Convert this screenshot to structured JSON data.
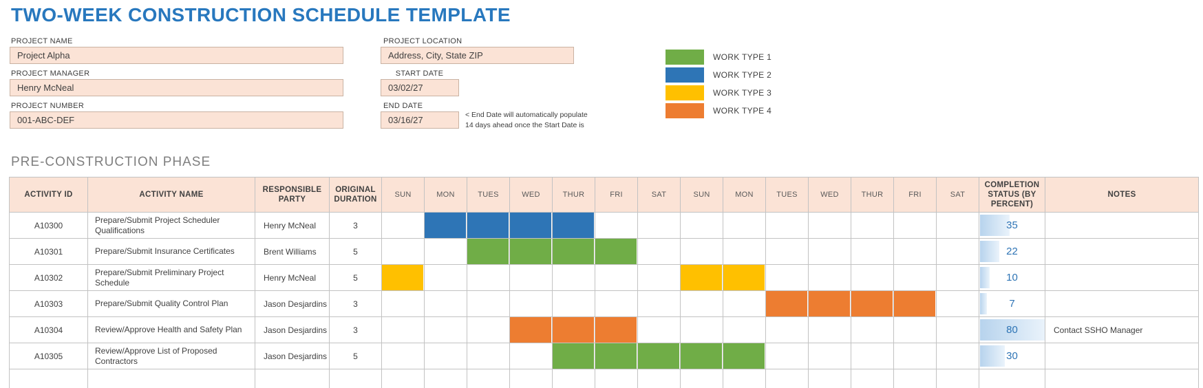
{
  "title": "TWO-WEEK CONSTRUCTION SCHEDULE TEMPLATE",
  "form": {
    "project_name": {
      "label": "PROJECT NAME",
      "value": "Project Alpha"
    },
    "project_manager": {
      "label": "PROJECT MANAGER",
      "value": "Henry McNeal"
    },
    "project_number": {
      "label": "PROJECT NUMBER",
      "value": "001-ABC-DEF"
    },
    "project_location": {
      "label": "PROJECT LOCATION",
      "value": "Address, City, State ZIP"
    },
    "start_date": {
      "label": "START DATE",
      "value": "03/02/27"
    },
    "end_date": {
      "label": "END DATE",
      "value": "03/16/27"
    },
    "end_date_note": {
      "line1": "< End Date will automatically populate",
      "line2": "14 days ahead once the Start Date is"
    }
  },
  "legend": {
    "items": [
      {
        "label": "WORK TYPE 1",
        "color": "#70AD47"
      },
      {
        "label": "WORK TYPE 2",
        "color": "#2E75B6"
      },
      {
        "label": "WORK TYPE 3",
        "color": "#FFC000"
      },
      {
        "label": "WORK TYPE 4",
        "color": "#ED7D31"
      }
    ]
  },
  "section_title": "PRE-CONSTRUCTION PHASE",
  "table": {
    "headers": {
      "activity_id": "ACTIVITY ID",
      "activity_name": "ACTIVITY NAME",
      "responsible_party": "RESPONSIBLE PARTY",
      "original_duration": "ORIGINAL DURATION",
      "completion_status": "COMPLETION STATUS (BY PERCENT)",
      "notes": "NOTES"
    },
    "day_headers": [
      "SUN",
      "MON",
      "TUES",
      "WED",
      "THUR",
      "FRI",
      "SAT",
      "SUN",
      "MON",
      "TUES",
      "WED",
      "THUR",
      "FRI",
      "SAT"
    ],
    "rows": [
      {
        "activity_id": "A10300",
        "activity_name": "Prepare/Submit Project Scheduler Qualifications",
        "responsible_party": "Henry McNeal",
        "original_duration": "3",
        "gantt": {
          "work_type": "WORK TYPE 2",
          "color": "#2E75B6",
          "day_indices": [
            1,
            2,
            3,
            4
          ]
        },
        "completion_percent": "35",
        "completion_bar_pct": 45,
        "notes": ""
      },
      {
        "activity_id": "A10301",
        "activity_name": "Prepare/Submit Insurance Certificates",
        "responsible_party": "Brent Williams",
        "original_duration": "5",
        "gantt": {
          "work_type": "WORK TYPE 1",
          "color": "#70AD47",
          "day_indices": [
            2,
            3,
            4,
            5
          ]
        },
        "completion_percent": "22",
        "completion_bar_pct": 29,
        "notes": ""
      },
      {
        "activity_id": "A10302",
        "activity_name": "Prepare/Submit Preliminary Project Schedule",
        "responsible_party": "Henry McNeal",
        "original_duration": "5",
        "gantt": {
          "work_type": "WORK TYPE 3",
          "color": "#FFC000",
          "day_indices": [
            0,
            7,
            8
          ]
        },
        "completion_percent": "10",
        "completion_bar_pct": 15,
        "notes": ""
      },
      {
        "activity_id": "A10303",
        "activity_name": "Prepare/Submit Quality Control Plan",
        "responsible_party": "Jason Desjardins",
        "original_duration": "3",
        "gantt": {
          "work_type": "WORK TYPE 4",
          "color": "#ED7D31",
          "day_indices": [
            9,
            10,
            11,
            12
          ]
        },
        "completion_percent": "7",
        "completion_bar_pct": 11,
        "notes": ""
      },
      {
        "activity_id": "A10304",
        "activity_name": "Review/Approve Health and Safety Plan",
        "responsible_party": "Jason Desjardins",
        "original_duration": "3",
        "gantt": {
          "work_type": "WORK TYPE 4",
          "color": "#ED7D31",
          "day_indices": [
            3,
            4,
            5
          ]
        },
        "completion_percent": "80",
        "completion_bar_pct": 100,
        "notes": "Contact SSHO Manager"
      },
      {
        "activity_id": "A10305",
        "activity_name": "Review/Approve List of Proposed Contractors",
        "responsible_party": "Jason Desjardins",
        "original_duration": "5",
        "gantt": {
          "work_type": "WORK TYPE 1",
          "color": "#70AD47",
          "day_indices": [
            4,
            5,
            6,
            7,
            8
          ]
        },
        "completion_percent": "30",
        "completion_bar_pct": 38,
        "notes": ""
      },
      {
        "activity_id": "",
        "activity_name": "",
        "responsible_party": "",
        "original_duration": "",
        "gantt": null,
        "completion_percent": "",
        "completion_bar_pct": 0,
        "notes": ""
      }
    ]
  },
  "colors": {
    "accent_blue": "#2878BE",
    "field_fill": "#FBE3D6",
    "header_fill": "#FBE3D6",
    "grid_line": "#C2C2C2",
    "completion_text": "#2E74B5",
    "work_type_1": "#70AD47",
    "work_type_2": "#2E75B6",
    "work_type_3": "#FFC000",
    "work_type_4": "#ED7D31"
  }
}
